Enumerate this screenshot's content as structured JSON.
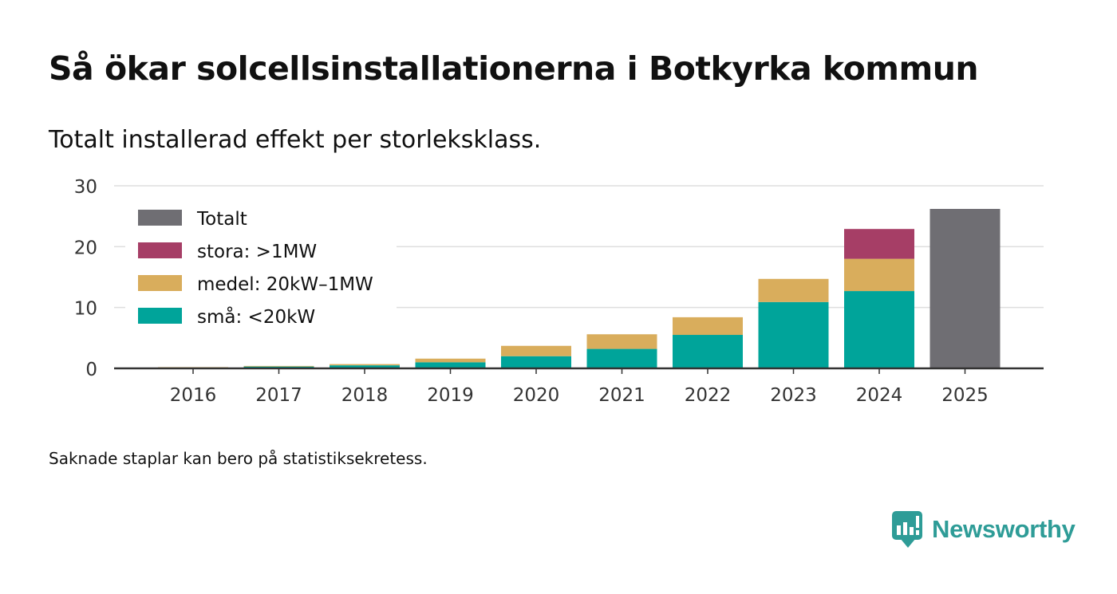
{
  "header": {
    "title": "Så ökar solcellsinstallationerna i Botkyrka kommun",
    "subtitle": "Totalt installerad effekt per storleksklass."
  },
  "chart_data": {
    "type": "bar",
    "stacked": true,
    "categories": [
      "2016",
      "2017",
      "2018",
      "2019",
      "2020",
      "2021",
      "2022",
      "2023",
      "2024",
      "2025"
    ],
    "series": [
      {
        "name": "små: <20kW",
        "color": "#00a49a",
        "values": [
          0.1,
          0.3,
          0.5,
          1.0,
          2.0,
          3.2,
          5.5,
          10.9,
          12.7,
          null
        ]
      },
      {
        "name": "medel: 20kW–1MW",
        "color": "#d9ad5c",
        "values": [
          0.1,
          0.1,
          0.2,
          0.6,
          1.7,
          2.4,
          2.9,
          3.8,
          5.3,
          null
        ]
      },
      {
        "name": "stora: >1MW",
        "color": "#a63e66",
        "values": [
          null,
          null,
          null,
          null,
          null,
          null,
          null,
          null,
          4.9,
          null
        ]
      },
      {
        "name": "Totalt",
        "color": "#6f6e73",
        "values": [
          null,
          null,
          null,
          null,
          null,
          null,
          null,
          null,
          null,
          26.2
        ]
      }
    ],
    "legend_order": [
      "Totalt",
      "stora: >1MW",
      "medel: 20kW–1MW",
      "små: <20kW"
    ],
    "legend_position": "top-left",
    "yticks": [
      0,
      10,
      20,
      30
    ],
    "ylim": [
      0,
      30
    ],
    "grid": true,
    "title": "",
    "xlabel": "",
    "ylabel": ""
  },
  "footer": {
    "note": "Saknade staplar kan bero på statistiksekretess.",
    "brand": "Newsworthy"
  },
  "colors": {
    "grid": "#dedede",
    "axis": "#333333",
    "brand": "#2e9c97"
  },
  "icons": {
    "brand_logo": "bar-chart-speech-bubble-icon"
  }
}
